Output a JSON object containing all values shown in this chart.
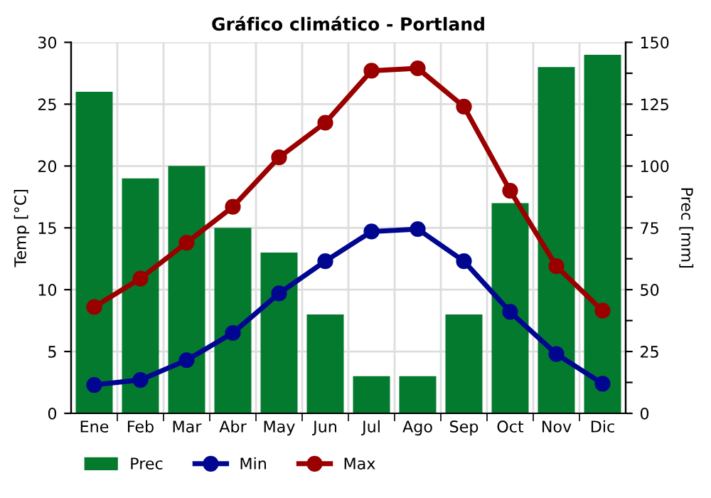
{
  "chart_data": {
    "type": "bar",
    "title": "Gráfico climático - Portland",
    "categories": [
      "Ene",
      "Feb",
      "Mar",
      "Abr",
      "May",
      "Jun",
      "Jul",
      "Ago",
      "Sep",
      "Oct",
      "Nov",
      "Dic"
    ],
    "series": [
      {
        "name": "Prec",
        "axis": "y2",
        "color": "#047a2f",
        "values": [
          130,
          95,
          100,
          75,
          65,
          40,
          15,
          15,
          40,
          85,
          140,
          145
        ]
      },
      {
        "name": "Min",
        "type": "line",
        "color": "#00068f",
        "values": [
          2.3,
          2.7,
          4.3,
          6.5,
          9.7,
          12.3,
          14.7,
          14.9,
          12.3,
          8.2,
          4.8,
          2.4
        ]
      },
      {
        "name": "Max",
        "type": "line",
        "color": "#9a0000",
        "values": [
          8.6,
          10.9,
          13.8,
          16.7,
          20.7,
          23.5,
          27.7,
          27.9,
          24.8,
          18.0,
          11.9,
          8.3
        ]
      }
    ],
    "ylabel": "Temp [°C]",
    "y2label": "Prec [mm]",
    "ylim": [
      0,
      30
    ],
    "yticks": [
      0,
      5,
      10,
      15,
      20,
      25,
      30
    ],
    "y2lim": [
      0,
      150
    ],
    "y2ticks": [
      0,
      {
        "value": 12.5,
        "label": null
      },
      25,
      {
        "value": 37.5,
        "label": null
      },
      50,
      {
        "value": 62.5,
        "label": null
      },
      75,
      {
        "value": 87.5,
        "label": null
      },
      100,
      {
        "value": 112.5,
        "label": null
      },
      125,
      {
        "value": 137.5,
        "label": null
      },
      150
    ],
    "grid": true,
    "legend": "bottom",
    "marker": "circle",
    "line_style": "solid"
  }
}
